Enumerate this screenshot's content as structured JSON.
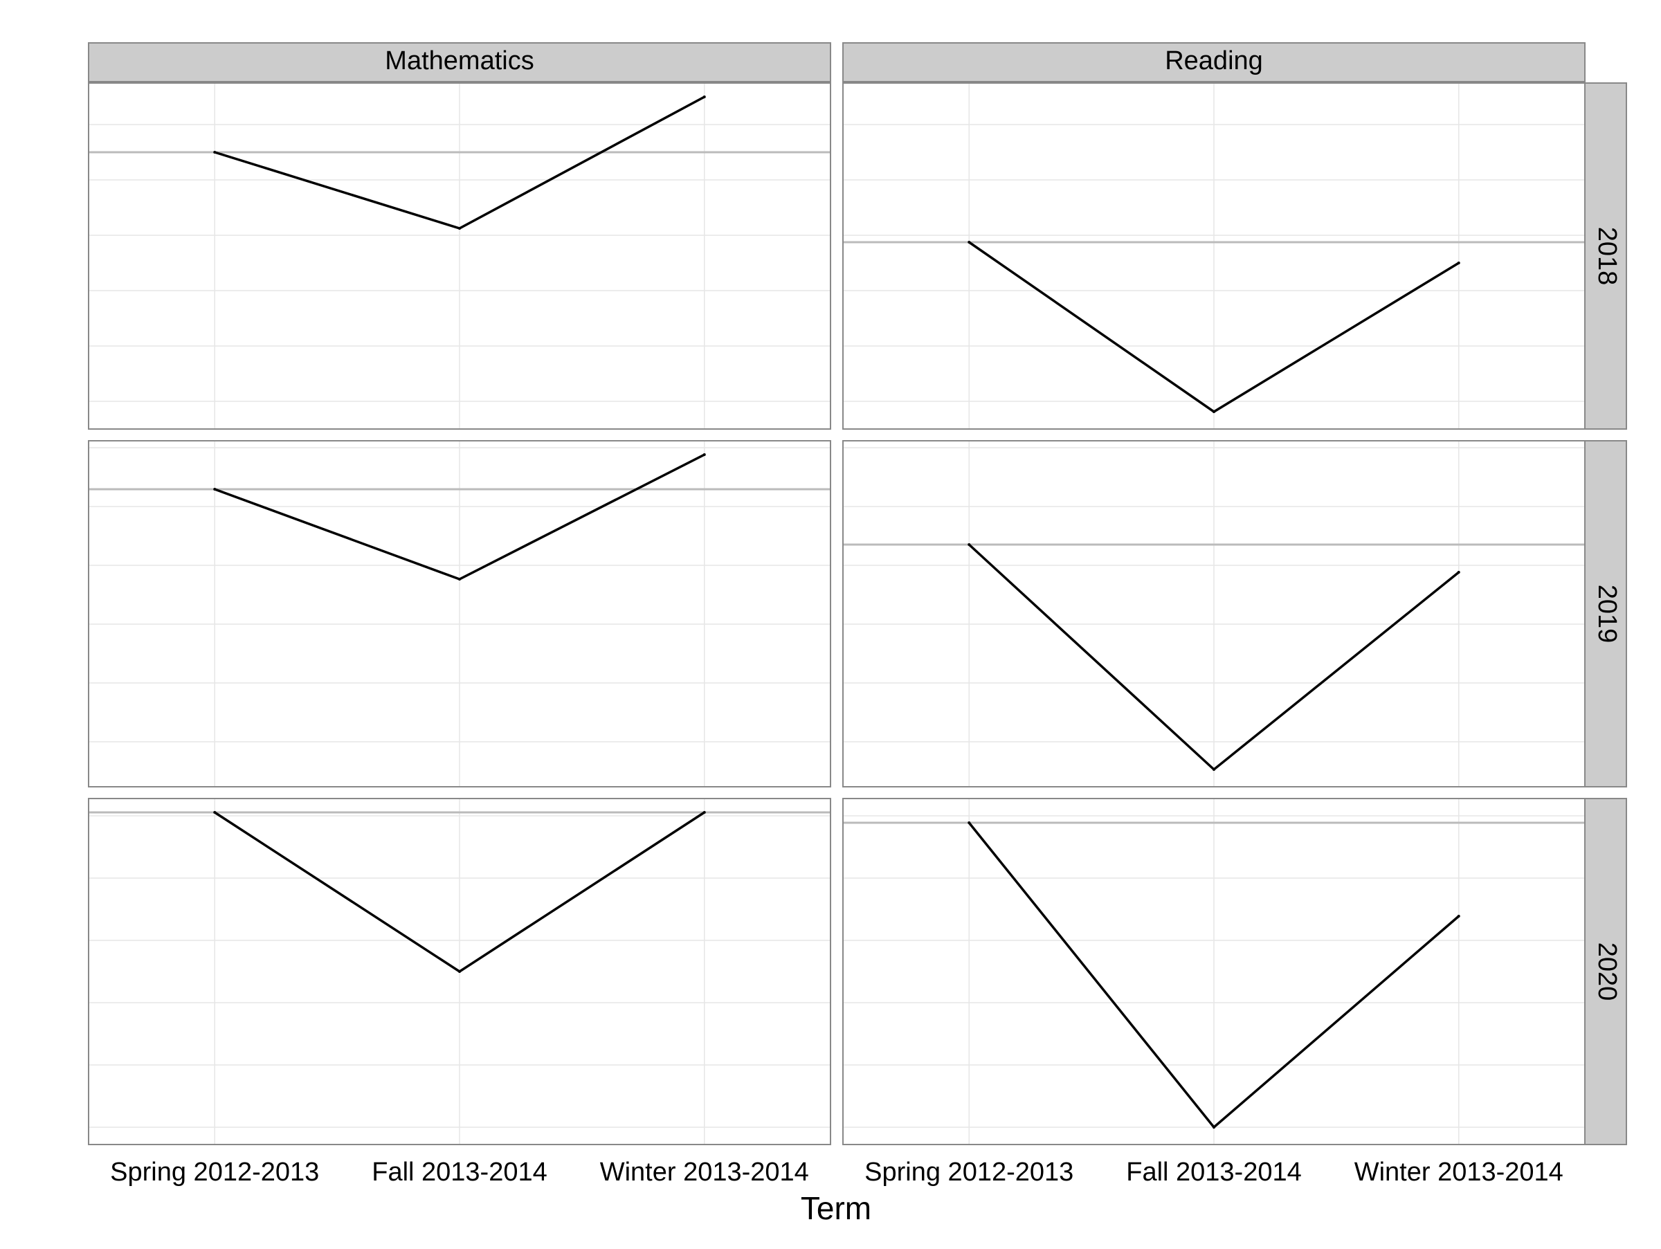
{
  "colors": {
    "strip_fill": "#cccccc",
    "strip_border": "#888888",
    "panel_border": "#888888",
    "grid": "#e6e6e6",
    "reference_line": "#bbbbbb",
    "series_line": "#000000"
  },
  "chart_data": {
    "type": "line",
    "facet_layout": "grid",
    "xlabel": "Term",
    "ylabel": "",
    "x": [
      "Spring 2012-2013",
      "Fall 2013-2014",
      "Winter 2013-2014"
    ],
    "columns": [
      "Mathematics",
      "Reading"
    ],
    "rows": [
      "2018",
      "2019",
      "2020"
    ],
    "grid": true,
    "y_tick_labels_shown": false,
    "panels": [
      {
        "column": "Mathematics",
        "row": "2018",
        "ylim": [
          0,
          100
        ],
        "gridlines": [
          8,
          24,
          40,
          56,
          72,
          88
        ],
        "reference": 80,
        "values": [
          80,
          58,
          96
        ]
      },
      {
        "column": "Reading",
        "row": "2018",
        "ylim": [
          0,
          100
        ],
        "gridlines": [
          8,
          24,
          40,
          56,
          72,
          88
        ],
        "reference": 54,
        "values": [
          54,
          5,
          48
        ]
      },
      {
        "column": "Mathematics",
        "row": "2019",
        "ylim": [
          0,
          100
        ],
        "gridlines": [
          13,
          30,
          47,
          64,
          81,
          98
        ],
        "reference": 86,
        "values": [
          86,
          60,
          96
        ]
      },
      {
        "column": "Reading",
        "row": "2019",
        "ylim": [
          0,
          100
        ],
        "gridlines": [
          13,
          30,
          47,
          64,
          81,
          98
        ],
        "reference": 70,
        "values": [
          70,
          5,
          62
        ]
      },
      {
        "column": "Mathematics",
        "row": "2020",
        "ylim": [
          0,
          100
        ],
        "gridlines": [
          5,
          23,
          41,
          59,
          77,
          95
        ],
        "reference": 96,
        "values": [
          96,
          50,
          96
        ]
      },
      {
        "column": "Reading",
        "row": "2020",
        "ylim": [
          0,
          100
        ],
        "gridlines": [
          5,
          23,
          41,
          59,
          77,
          95
        ],
        "reference": 93,
        "values": [
          93,
          5,
          66
        ]
      }
    ]
  }
}
